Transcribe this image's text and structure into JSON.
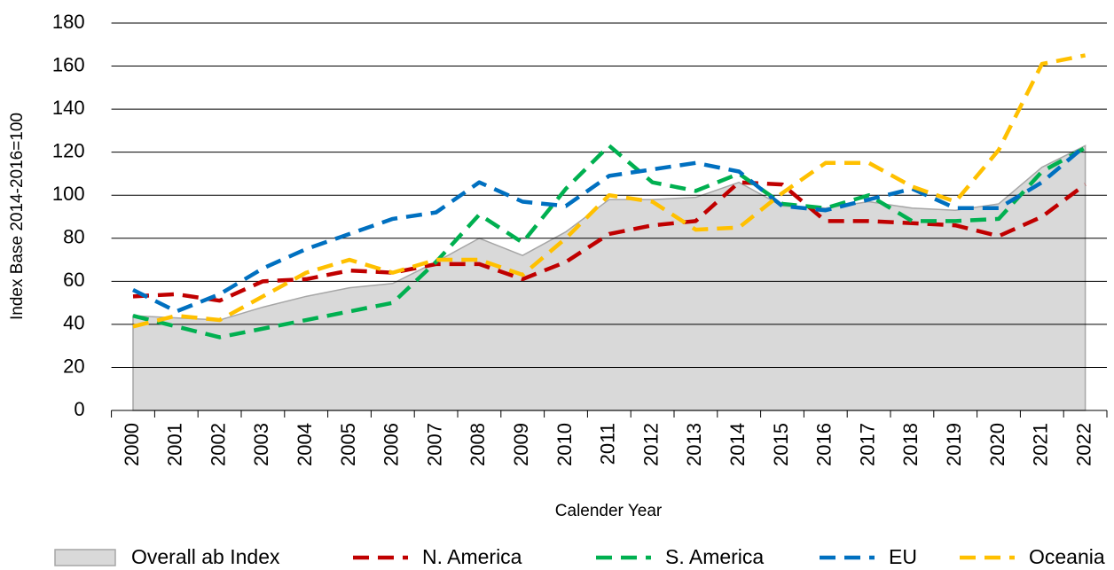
{
  "chart_data": {
    "type": "line",
    "xlabel": "Calender Year",
    "ylabel": "Index Base 2014-2016=100",
    "categories": [
      "2000",
      "2001",
      "2002",
      "2003",
      "2004",
      "2005",
      "2006",
      "2007",
      "2008",
      "2009",
      "2010",
      "2011",
      "2012",
      "2013",
      "2014",
      "2015",
      "2016",
      "2017",
      "2018",
      "2019",
      "2020",
      "2021",
      "2022"
    ],
    "ylim": [
      0,
      180
    ],
    "yticks": [
      0,
      20,
      40,
      60,
      80,
      100,
      120,
      140,
      160,
      180
    ],
    "grid": true,
    "legend": "bottom",
    "series": [
      {
        "name": "Overall ab Index",
        "style": "area",
        "color": "#d9d9d9",
        "values": [
          44,
          43,
          42,
          48,
          53,
          57,
          59,
          69,
          80,
          72,
          83,
          98,
          98,
          99,
          106,
          95,
          94,
          97,
          94,
          93,
          96,
          113,
          123
        ]
      },
      {
        "name": "N. America",
        "style": "dashed",
        "color": "#c00000",
        "values": [
          53,
          54,
          51,
          60,
          61,
          65,
          64,
          68,
          68,
          61,
          69,
          82,
          86,
          88,
          106,
          105,
          88,
          88,
          87,
          86,
          81,
          90,
          105
        ]
      },
      {
        "name": "S. America",
        "style": "dashed",
        "color": "#00b050",
        "values": [
          44,
          39,
          34,
          38,
          42,
          46,
          50,
          69,
          91,
          78,
          103,
          123,
          106,
          102,
          110,
          96,
          94,
          100,
          88,
          88,
          89,
          111,
          122
        ]
      },
      {
        "name": "EU",
        "style": "dashed",
        "color": "#0070c0",
        "values": [
          56,
          46,
          54,
          66,
          75,
          82,
          89,
          92,
          106,
          97,
          95,
          109,
          112,
          115,
          111,
          95,
          93,
          98,
          103,
          94,
          94,
          106,
          123
        ]
      },
      {
        "name": "Oceania",
        "style": "dashed",
        "color": "#ffc000",
        "values": [
          39,
          44,
          42,
          53,
          64,
          70,
          64,
          70,
          70,
          63,
          80,
          100,
          97,
          84,
          85,
          101,
          115,
          115,
          104,
          97,
          121,
          161,
          165
        ]
      }
    ]
  }
}
